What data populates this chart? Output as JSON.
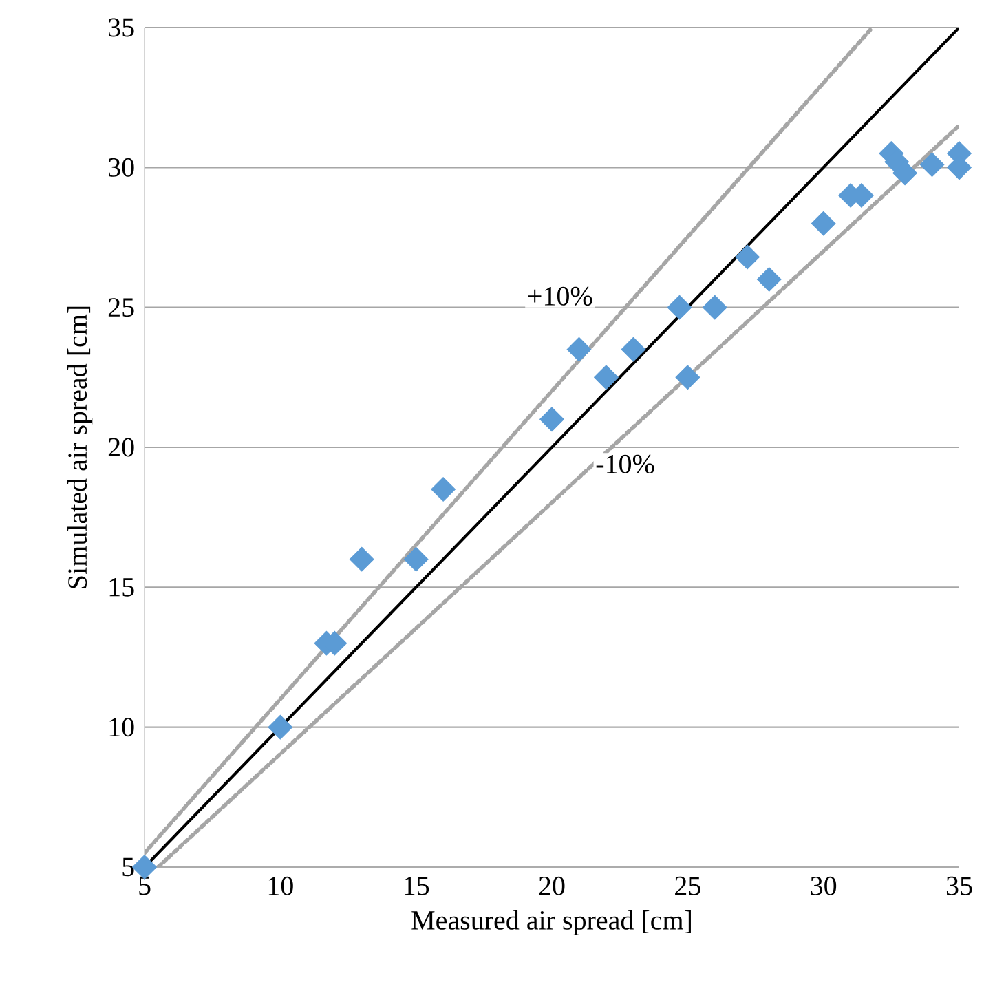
{
  "chart_data": {
    "type": "scatter",
    "xlabel": "Measured air spread [cm]",
    "ylabel": "Simulated  air spread [cm]",
    "xlim": [
      5,
      35
    ],
    "ylim": [
      5,
      35
    ],
    "xticks": [
      5,
      10,
      15,
      20,
      25,
      30,
      35
    ],
    "yticks": [
      5,
      10,
      15,
      20,
      25,
      30,
      35
    ],
    "grid": "y",
    "series": [
      {
        "type": "line",
        "color": "#000000",
        "line_style": "solid",
        "marker": "none",
        "x": [
          5,
          35
        ],
        "values": [
          5,
          35
        ]
      },
      {
        "type": "line",
        "color": "#a6a6a6",
        "line_style": "dotted",
        "marker": "none",
        "x": [
          5,
          31.8
        ],
        "values": [
          5.5,
          35
        ]
      },
      {
        "type": "line",
        "color": "#a6a6a6",
        "line_style": "dotted",
        "marker": "none",
        "x": [
          5.5,
          35
        ],
        "values": [
          5,
          31.5
        ]
      },
      {
        "color": "#5b9bd5",
        "marker": "diamond",
        "x": [
          5,
          10,
          11.7,
          12,
          13,
          15,
          16,
          20,
          21,
          22,
          23,
          24.7,
          25,
          26,
          27.2,
          28,
          30,
          31,
          31.4,
          32.5,
          32.7,
          33,
          34,
          35,
          35
        ],
        "values": [
          5,
          10,
          13,
          13,
          16,
          16,
          18.5,
          21,
          23.5,
          22.5,
          23.5,
          25,
          22.5,
          25,
          26.8,
          26,
          28,
          29,
          29,
          30.5,
          30.2,
          29.8,
          30.1,
          30.5,
          30
        ]
      }
    ],
    "annotations": [
      "+10%",
      "-10%"
    ]
  }
}
